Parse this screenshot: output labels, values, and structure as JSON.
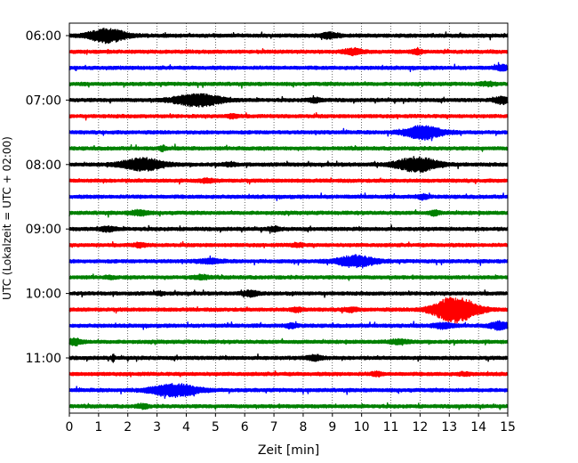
{
  "chart_data": {
    "type": "line",
    "subtype": "helicorder",
    "xlabel": "Zeit  [min]",
    "ylabel": "UTC (Lokalzeit = UTC + 02:00)",
    "xlim": [
      0,
      15
    ],
    "x_ticks": [
      0,
      1,
      2,
      3,
      4,
      5,
      6,
      7,
      8,
      9,
      10,
      11,
      12,
      13,
      14,
      15
    ],
    "x_grid": "dotted vertical lines at each minute",
    "trace_interval_minutes": 15,
    "trace_count": 24,
    "trace_colors": [
      "#000000",
      "#ff0000",
      "#0000ff",
      "#008000"
    ],
    "y_tick_labels": [
      "06:00",
      "07:00",
      "08:00",
      "09:00",
      "10:00",
      "11:00"
    ],
    "events": [
      {
        "trace": 0,
        "minute": 1.3,
        "amplitude": 3.2,
        "duration": 1.6
      },
      {
        "trace": 0,
        "minute": 8.9,
        "amplitude": 1.6,
        "duration": 0.8
      },
      {
        "trace": 1,
        "minute": 9.7,
        "amplitude": 1.7,
        "duration": 0.8
      },
      {
        "trace": 1,
        "minute": 11.9,
        "amplitude": 1.3,
        "duration": 0.5
      },
      {
        "trace": 2,
        "minute": 14.8,
        "amplitude": 1.6,
        "duration": 0.5
      },
      {
        "trace": 3,
        "minute": 14.3,
        "amplitude": 1.2,
        "duration": 0.6
      },
      {
        "trace": 4,
        "minute": 4.4,
        "amplitude": 3.0,
        "duration": 2.0
      },
      {
        "trace": 4,
        "minute": 8.4,
        "amplitude": 1.3,
        "duration": 0.6
      },
      {
        "trace": 4,
        "minute": 14.8,
        "amplitude": 2.0,
        "duration": 0.6
      },
      {
        "trace": 5,
        "minute": 5.6,
        "amplitude": 1.2,
        "duration": 0.5
      },
      {
        "trace": 6,
        "minute": 12.1,
        "amplitude": 3.2,
        "duration": 1.6
      },
      {
        "trace": 7,
        "minute": 3.2,
        "amplitude": 1.4,
        "duration": 0.3
      },
      {
        "trace": 8,
        "minute": 2.5,
        "amplitude": 3.0,
        "duration": 1.8
      },
      {
        "trace": 8,
        "minute": 11.9,
        "amplitude": 3.4,
        "duration": 1.8
      },
      {
        "trace": 8,
        "minute": 5.5,
        "amplitude": 1.2,
        "duration": 0.5
      },
      {
        "trace": 9,
        "minute": 4.7,
        "amplitude": 1.2,
        "duration": 0.6
      },
      {
        "trace": 10,
        "minute": 12.1,
        "amplitude": 1.4,
        "duration": 0.5
      },
      {
        "trace": 11,
        "minute": 2.4,
        "amplitude": 1.5,
        "duration": 0.7
      },
      {
        "trace": 11,
        "minute": 12.5,
        "amplitude": 1.5,
        "duration": 0.4
      },
      {
        "trace": 12,
        "minute": 1.3,
        "amplitude": 1.4,
        "duration": 0.7
      },
      {
        "trace": 12,
        "minute": 7.0,
        "amplitude": 1.3,
        "duration": 0.5
      },
      {
        "trace": 13,
        "minute": 2.4,
        "amplitude": 1.3,
        "duration": 0.5
      },
      {
        "trace": 13,
        "minute": 7.8,
        "amplitude": 1.2,
        "duration": 0.5
      },
      {
        "trace": 14,
        "minute": 9.8,
        "amplitude": 2.8,
        "duration": 1.6
      },
      {
        "trace": 14,
        "minute": 4.8,
        "amplitude": 1.3,
        "duration": 1.0
      },
      {
        "trace": 15,
        "minute": 4.5,
        "amplitude": 1.3,
        "duration": 0.7
      },
      {
        "trace": 15,
        "minute": 1.4,
        "amplitude": 1.0,
        "duration": 0.4
      },
      {
        "trace": 16,
        "minute": 6.2,
        "amplitude": 1.7,
        "duration": 0.6
      },
      {
        "trace": 16,
        "minute": 3.1,
        "amplitude": 1.1,
        "duration": 0.3
      },
      {
        "trace": 17,
        "minute": 13.2,
        "amplitude": 6.0,
        "duration": 1.8
      },
      {
        "trace": 17,
        "minute": 7.8,
        "amplitude": 1.3,
        "duration": 0.5
      },
      {
        "trace": 17,
        "minute": 9.6,
        "amplitude": 1.3,
        "duration": 0.6
      },
      {
        "trace": 18,
        "minute": 14.7,
        "amplitude": 2.0,
        "duration": 0.8
      },
      {
        "trace": 18,
        "minute": 7.6,
        "amplitude": 1.4,
        "duration": 0.5
      },
      {
        "trace": 18,
        "minute": 12.8,
        "amplitude": 1.6,
        "duration": 0.8
      },
      {
        "trace": 19,
        "minute": 0.2,
        "amplitude": 1.8,
        "duration": 0.6
      },
      {
        "trace": 19,
        "minute": 11.3,
        "amplitude": 1.4,
        "duration": 0.8
      },
      {
        "trace": 20,
        "minute": 8.4,
        "amplitude": 1.5,
        "duration": 0.7
      },
      {
        "trace": 20,
        "minute": 1.5,
        "amplitude": 2.2,
        "duration": 0.1
      },
      {
        "trace": 21,
        "minute": 10.5,
        "amplitude": 1.2,
        "duration": 0.5
      },
      {
        "trace": 21,
        "minute": 13.5,
        "amplitude": 1.1,
        "duration": 0.5
      },
      {
        "trace": 22,
        "minute": 3.6,
        "amplitude": 3.0,
        "duration": 2.0
      },
      {
        "trace": 23,
        "minute": 2.5,
        "amplitude": 1.3,
        "duration": 0.5
      }
    ]
  }
}
